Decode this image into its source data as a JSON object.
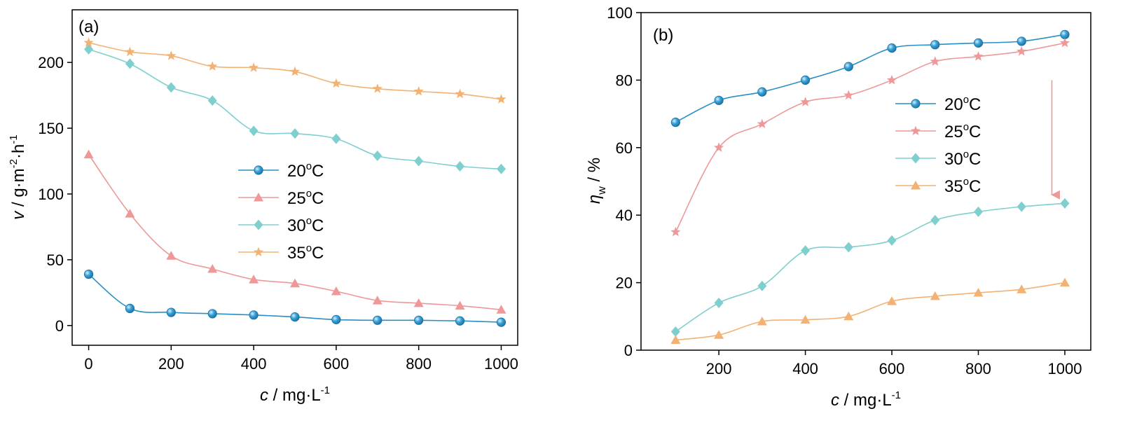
{
  "chart_data": [
    {
      "type": "line",
      "panel_label": "(a)",
      "xlabel": {
        "var": "c",
        "unit": " / mg·L",
        "exp": "-1"
      },
      "ylabel": {
        "var": "v",
        "unit": " / g·m",
        "exp1": "-2",
        "mid": "·h",
        "exp2": "-1"
      },
      "xlim": [
        -40,
        1040
      ],
      "ylim": [
        -15,
        240
      ],
      "xticks": [
        0,
        200,
        400,
        600,
        800,
        1000
      ],
      "yticks": [
        0,
        50,
        100,
        150,
        200
      ],
      "legend_position": "center-right",
      "x": [
        0,
        100,
        200,
        300,
        400,
        500,
        600,
        700,
        800,
        900,
        1000
      ],
      "series": [
        {
          "name": "20",
          "marker": "circle",
          "color": "#2a8fc4",
          "values": [
            39,
            13,
            10,
            9,
            8,
            6.5,
            4.5,
            4,
            4,
            3.5,
            2.5
          ]
        },
        {
          "name": "25",
          "marker": "triangle",
          "color": "#ee9898",
          "values": [
            130,
            85,
            53,
            43,
            35,
            32,
            26,
            19,
            17,
            15,
            12
          ]
        },
        {
          "name": "30",
          "marker": "diamond",
          "color": "#7fcfcf",
          "values": [
            210,
            199,
            181,
            171,
            148,
            146,
            142,
            129,
            125,
            121,
            119
          ]
        },
        {
          "name": "35",
          "marker": "star",
          "color": "#f2b273",
          "values": [
            215,
            208,
            205,
            197,
            196,
            193,
            184,
            180,
            178,
            176,
            172
          ]
        }
      ]
    },
    {
      "type": "line",
      "panel_label": "(b)",
      "xlabel": {
        "var": "c",
        "unit": " / mg·L",
        "exp": "-1"
      },
      "ylabel": {
        "var": "η",
        "sub": "w",
        "unit": " / %"
      },
      "xlim": [
        20,
        1060
      ],
      "ylim": [
        0,
        100
      ],
      "xticks": [
        200,
        400,
        600,
        800,
        1000
      ],
      "yticks": [
        0,
        20,
        40,
        60,
        80,
        100
      ],
      "legend_position": "center-right",
      "arrow": {
        "color": "#ee9898",
        "x": 970,
        "y_from": 80,
        "y_to": 46
      },
      "x": [
        100,
        200,
        300,
        400,
        500,
        600,
        700,
        800,
        900,
        1000
      ],
      "series": [
        {
          "name": "20",
          "marker": "circle",
          "color": "#2a8fc4",
          "values": [
            67.5,
            74,
            76.5,
            80,
            84,
            89.5,
            90.5,
            91,
            91.5,
            93.5
          ]
        },
        {
          "name": "25",
          "marker": "star",
          "color": "#ee9898",
          "values": [
            35,
            60,
            67,
            73.5,
            75.5,
            80,
            85.5,
            87,
            88.5,
            91
          ]
        },
        {
          "name": "30",
          "marker": "diamond",
          "color": "#7fcfcf",
          "values": [
            5.5,
            14,
            19,
            29.5,
            30.5,
            32.5,
            38.5,
            41,
            42.5,
            43.5
          ]
        },
        {
          "name": "35",
          "marker": "triangle",
          "color": "#f2b273",
          "values": [
            3,
            4.5,
            8.5,
            9,
            10,
            14.5,
            16,
            17,
            18,
            20
          ]
        }
      ]
    }
  ],
  "legend_unit": {
    "sup": "o",
    "base": "C"
  }
}
